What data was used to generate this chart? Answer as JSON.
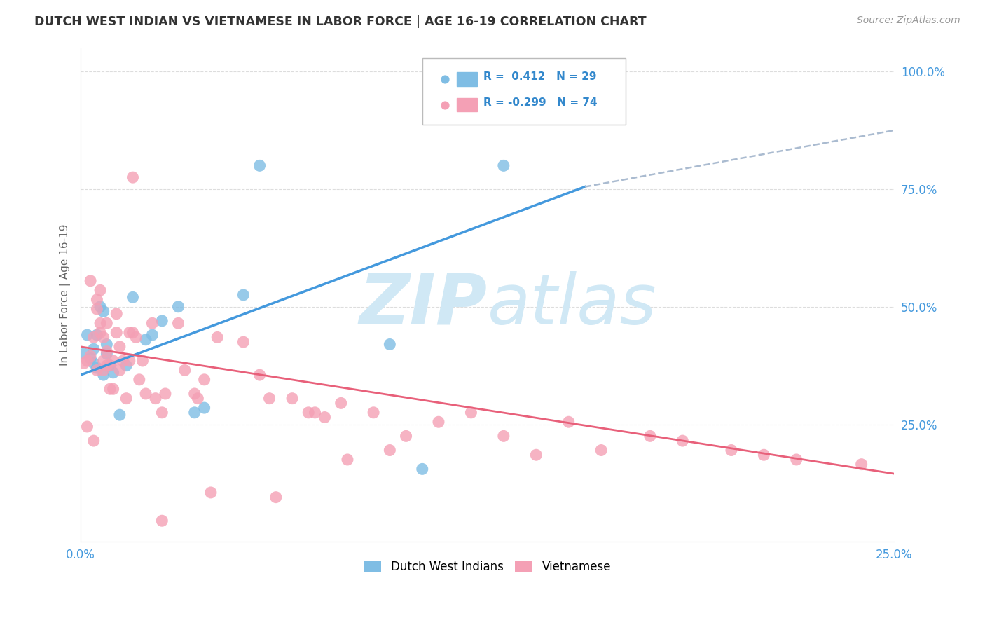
{
  "title": "DUTCH WEST INDIAN VS VIETNAMESE IN LABOR FORCE | AGE 16-19 CORRELATION CHART",
  "source": "Source: ZipAtlas.com",
  "ylabel": "In Labor Force | Age 16-19",
  "x_min": 0.0,
  "x_max": 0.25,
  "y_min": 0.0,
  "y_max": 1.05,
  "x_ticks": [
    0.0,
    0.05,
    0.1,
    0.15,
    0.2,
    0.25
  ],
  "x_tick_labels": [
    "0.0%",
    "",
    "",
    "",
    "",
    "25.0%"
  ],
  "y_ticks": [
    0.25,
    0.5,
    0.75,
    1.0
  ],
  "y_tick_labels": [
    "25.0%",
    "50.0%",
    "75.0%",
    "100.0%"
  ],
  "blue_color": "#7fbde4",
  "pink_color": "#f4a0b5",
  "blue_line_color": "#4499dd",
  "pink_line_color": "#e8607a",
  "dashed_line_color": "#aabbd0",
  "watermark_color": "#d0e8f5",
  "legend_R_blue": "0.412",
  "legend_N_blue": "29",
  "legend_R_pink": "-0.299",
  "legend_N_pink": "74",
  "blue_scatter_x": [
    0.001,
    0.002,
    0.003,
    0.004,
    0.004,
    0.005,
    0.005,
    0.006,
    0.007,
    0.007,
    0.008,
    0.008,
    0.009,
    0.01,
    0.012,
    0.014,
    0.016,
    0.02,
    0.022,
    0.025,
    0.03,
    0.035,
    0.038,
    0.05,
    0.055,
    0.095,
    0.105,
    0.13,
    0.155
  ],
  "blue_scatter_y": [
    0.4,
    0.44,
    0.39,
    0.38,
    0.41,
    0.44,
    0.37,
    0.5,
    0.49,
    0.355,
    0.42,
    0.4,
    0.375,
    0.36,
    0.27,
    0.375,
    0.52,
    0.43,
    0.44,
    0.47,
    0.5,
    0.275,
    0.285,
    0.525,
    0.8,
    0.42,
    0.155,
    0.8,
    1.0
  ],
  "pink_scatter_x": [
    0.001,
    0.002,
    0.002,
    0.003,
    0.003,
    0.004,
    0.004,
    0.005,
    0.005,
    0.005,
    0.006,
    0.006,
    0.006,
    0.007,
    0.007,
    0.007,
    0.008,
    0.008,
    0.008,
    0.009,
    0.009,
    0.01,
    0.01,
    0.011,
    0.011,
    0.012,
    0.012,
    0.013,
    0.014,
    0.015,
    0.015,
    0.016,
    0.016,
    0.017,
    0.018,
    0.019,
    0.02,
    0.022,
    0.023,
    0.025,
    0.025,
    0.026,
    0.03,
    0.032,
    0.035,
    0.036,
    0.038,
    0.04,
    0.042,
    0.05,
    0.055,
    0.058,
    0.06,
    0.065,
    0.07,
    0.072,
    0.075,
    0.08,
    0.082,
    0.09,
    0.095,
    0.1,
    0.11,
    0.12,
    0.13,
    0.14,
    0.15,
    0.16,
    0.175,
    0.185,
    0.2,
    0.21,
    0.22,
    0.24
  ],
  "pink_scatter_y": [
    0.38,
    0.245,
    0.385,
    0.555,
    0.395,
    0.215,
    0.435,
    0.515,
    0.495,
    0.365,
    0.535,
    0.465,
    0.445,
    0.365,
    0.435,
    0.385,
    0.465,
    0.405,
    0.375,
    0.325,
    0.375,
    0.385,
    0.325,
    0.445,
    0.485,
    0.415,
    0.365,
    0.385,
    0.305,
    0.445,
    0.385,
    0.775,
    0.445,
    0.435,
    0.345,
    0.385,
    0.315,
    0.465,
    0.305,
    0.045,
    0.275,
    0.315,
    0.465,
    0.365,
    0.315,
    0.305,
    0.345,
    0.105,
    0.435,
    0.425,
    0.355,
    0.305,
    0.095,
    0.305,
    0.275,
    0.275,
    0.265,
    0.295,
    0.175,
    0.275,
    0.195,
    0.225,
    0.255,
    0.275,
    0.225,
    0.185,
    0.255,
    0.195,
    0.225,
    0.215,
    0.195,
    0.185,
    0.175,
    0.165
  ],
  "blue_line_x": [
    0.0,
    0.155
  ],
  "blue_line_y": [
    0.355,
    0.755
  ],
  "pink_line_x": [
    0.0,
    0.25
  ],
  "pink_line_y": [
    0.415,
    0.145
  ],
  "dashed_line_x": [
    0.155,
    0.25
  ],
  "dashed_line_y": [
    0.755,
    0.875
  ],
  "background_color": "#ffffff",
  "grid_color": "#dddddd"
}
